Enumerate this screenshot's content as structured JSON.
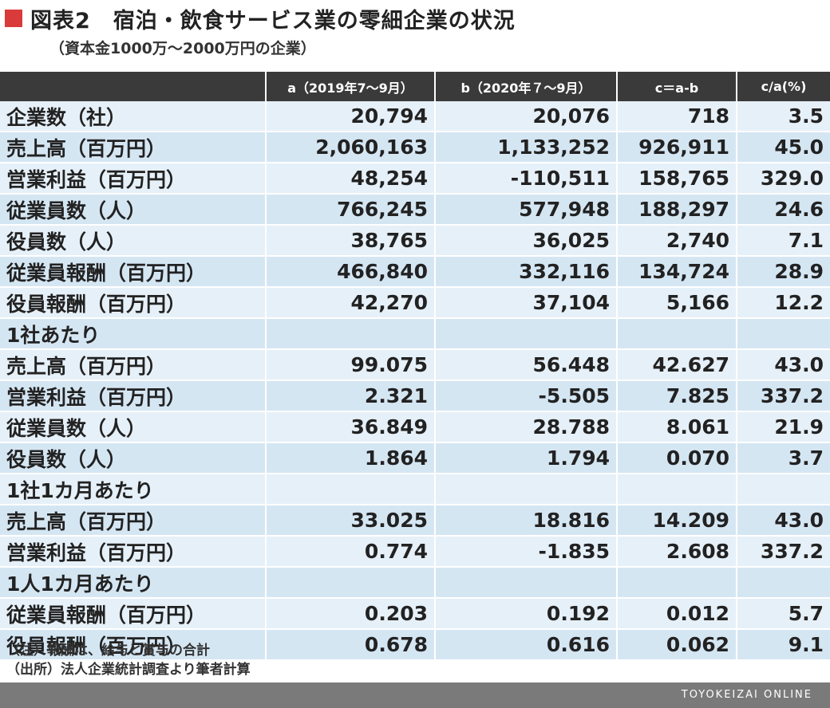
{
  "title": "図表2　宿泊・飲食サービス業の零細企業の状況",
  "subtitle": "（資本金1000万～2000万円の企業）",
  "table": {
    "columns": [
      "",
      "a（2019年7～9月）",
      "b（2020年７～9月）",
      "c＝a-b",
      "c/a(%)"
    ],
    "rows": [
      [
        "企業数（社）",
        "20,794",
        "20,076",
        "718",
        "3.5"
      ],
      [
        "売上高（百万円）",
        "2,060,163",
        "1,133,252",
        "926,911",
        "45.0"
      ],
      [
        "営業利益（百万円）",
        "48,254",
        "-110,511",
        "158,765",
        "329.0"
      ],
      [
        "従業員数（人）",
        "766,245",
        "577,948",
        "188,297",
        "24.6"
      ],
      [
        "役員数（人）",
        "38,765",
        "36,025",
        "2,740",
        "7.1"
      ],
      [
        "従業員報酬（百万円）",
        "466,840",
        "332,116",
        "134,724",
        "28.9"
      ],
      [
        "役員報酬（百万円）",
        "42,270",
        "37,104",
        "5,166",
        "12.2"
      ],
      [
        "1社あたり",
        "",
        "",
        "",
        ""
      ],
      [
        "売上高（百万円）",
        "99.075",
        "56.448",
        "42.627",
        "43.0"
      ],
      [
        "営業利益（百万円）",
        "2.321",
        "-5.505",
        "7.825",
        "337.2"
      ],
      [
        "従業員数（人）",
        "36.849",
        "28.788",
        "8.061",
        "21.9"
      ],
      [
        "役員数（人）",
        "1.864",
        "1.794",
        "0.070",
        "3.7"
      ],
      [
        "1社1カ月あたり",
        "",
        "",
        "",
        ""
      ],
      [
        "売上高（百万円）",
        "33.025",
        "18.816",
        "14.209",
        "43.0"
      ],
      [
        "営業利益（百万円）",
        "0.774",
        "-1.835",
        "2.608",
        "337.2"
      ],
      [
        "1人1カ月あたり",
        "",
        "",
        "",
        ""
      ],
      [
        "従業員報酬（百万円）",
        "0.203",
        "0.192",
        "0.012",
        "5.7"
      ],
      [
        "役員報酬（百万円）",
        "0.678",
        "0.616",
        "0.062",
        "9.1"
      ]
    ]
  },
  "notes": [
    "（注）報酬は、給与と賞与の合計",
    "（出所）法人企業統計調査より筆者計算"
  ],
  "footer_brand": "TOYOKEIZAI ONLINE",
  "colors": {
    "accent": "#d93a3a",
    "header_bg": "#3a3a3a",
    "row_light": "#e6f0f8",
    "row_dark": "#d5e6f3",
    "footer_bg": "#7a7a7a"
  }
}
